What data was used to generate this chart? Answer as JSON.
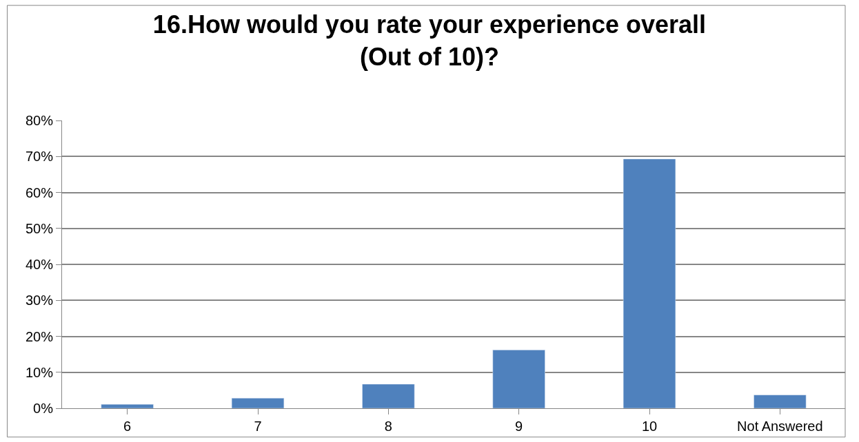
{
  "chart_data": {
    "type": "bar",
    "title": "16.How would you rate your experience overall\n(Out of 10)?",
    "categories": [
      "6",
      "7",
      "8",
      "9",
      "10",
      "Not Answered"
    ],
    "values": [
      1.1,
      2.8,
      6.7,
      16.2,
      69.3,
      3.7
    ],
    "color": "#4f81bd",
    "ylim": [
      0,
      80
    ],
    "yticks": [
      {
        "value": 0,
        "label": "0%"
      },
      {
        "value": 10,
        "label": "10%"
      },
      {
        "value": 20,
        "label": "20%"
      },
      {
        "value": 30,
        "label": "30%"
      },
      {
        "value": 40,
        "label": "40%"
      },
      {
        "value": 50,
        "label": "50%"
      },
      {
        "value": 60,
        "label": "60%"
      },
      {
        "value": 70,
        "label": "70%"
      },
      {
        "value": 80,
        "label": "80%"
      }
    ],
    "grid": "y",
    "legend": false
  }
}
